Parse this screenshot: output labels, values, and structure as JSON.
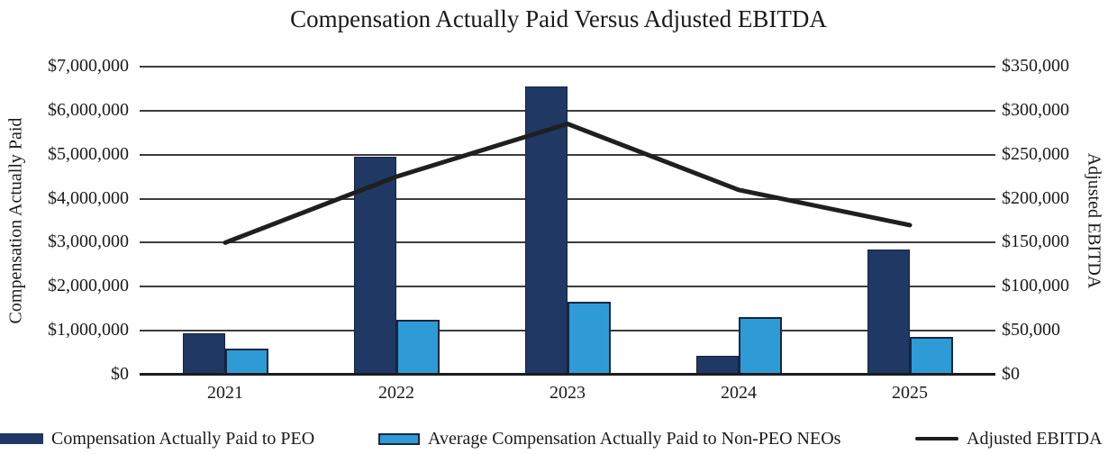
{
  "colors": {
    "peo_bar": "#1F3864",
    "neo_bar": "#2E9BD6",
    "line": "#1f1f1f",
    "gridline": "#3d3d3d",
    "text": "#1a1a1a"
  },
  "chart_data": {
    "type": "bar+line combo",
    "title": "Compensation Actually Paid Versus Adjusted EBITDA",
    "categories": [
      "2021",
      "2022",
      "2023",
      "2024",
      "2025"
    ],
    "series": [
      {
        "name": "Compensation Actually Paid to PEO",
        "type": "bar",
        "axis": "left",
        "values": [
          950000,
          4950000,
          6550000,
          430000,
          2850000
        ]
      },
      {
        "name": "Average Compensation Actually Paid to Non-PEO NEOs",
        "type": "bar",
        "axis": "left",
        "values": [
          600000,
          1250000,
          1650000,
          1320000,
          850000
        ]
      },
      {
        "name": "Adjusted EBITDA",
        "type": "line",
        "axis": "right",
        "values": [
          150000,
          225000,
          285000,
          210000,
          170000
        ]
      }
    ],
    "left_axis": {
      "label": "Compensation Actually Paid",
      "min": 0,
      "max": 7000000,
      "step": 1000000,
      "tick_labels": [
        "$7,000,000",
        "$6,000,000",
        "$5,000,000",
        "$4,000,000",
        "$3,000,000",
        "$2,000,000",
        "$1,000,000",
        "$0"
      ]
    },
    "right_axis": {
      "label": "Adjusted EBITDA",
      "min": 0,
      "max": 350000,
      "step": 50000,
      "tick_labels": [
        "$350,000",
        "$300,000",
        "$250,000",
        "$200,000",
        "$150,000",
        "$100,000",
        "$50,000",
        "$0"
      ]
    },
    "legend": [
      {
        "label": "Compensation Actually Paid to PEO",
        "swatch": "peo"
      },
      {
        "label": "Average Compensation Actually Paid to Non-PEO NEOs",
        "swatch": "neo"
      },
      {
        "label": "Adjusted EBITDA",
        "swatch": "line"
      }
    ],
    "grid": "horizontal",
    "legend_position": "bottom"
  }
}
